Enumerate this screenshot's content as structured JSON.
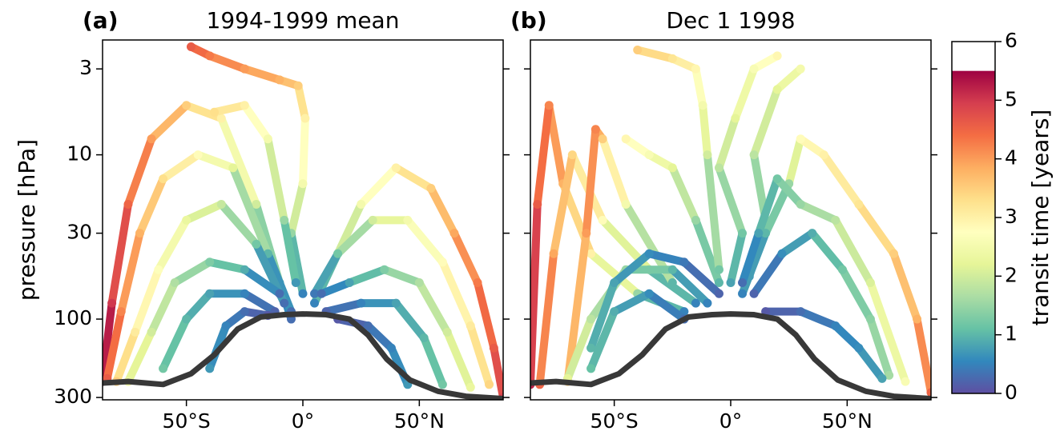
{
  "chart_data": [
    {
      "type": "trajectory",
      "label": "(a)",
      "title": "1994-1999 mean",
      "ylabel": "pressure [hPa]",
      "xlim": [
        -86,
        86
      ],
      "xticks": [
        {
          "value": -50,
          "label": "50°S"
        },
        {
          "value": 0,
          "label": "0°"
        },
        {
          "value": 50,
          "label": "50°N"
        }
      ],
      "ylim": [
        310,
        2
      ],
      "log_y": true,
      "yticks": [
        3,
        10,
        30,
        100,
        300
      ],
      "tropopause": {
        "x": [
          -86,
          -75,
          -60,
          -48,
          -38,
          -28,
          -18,
          -8,
          0,
          10,
          20,
          28,
          36,
          46,
          58,
          70,
          86
        ],
        "y": [
          245,
          240,
          250,
          215,
          165,
          115,
          97,
          94,
          93,
          94,
          100,
          125,
          175,
          235,
          275,
          295,
          305
        ]
      },
      "series": [
        {
          "x": [
            -5,
            -10,
            -20,
            -35,
            -50,
            -65,
            -75,
            -82,
            -86
          ],
          "y": [
            100,
            60,
            20,
            6,
            5,
            8,
            20,
            80,
            240
          ],
          "c": [
            0.3,
            0.8,
            2,
            3,
            3.5,
            4,
            4.5,
            5,
            5.5
          ]
        },
        {
          "x": [
            -5,
            -15,
            -30,
            -45,
            -60,
            -70,
            -78,
            -84
          ],
          "y": [
            90,
            40,
            12,
            10,
            14,
            30,
            90,
            230
          ],
          "c": [
            0.3,
            1,
            2.2,
            2.8,
            3.3,
            3.8,
            4.2,
            4.6
          ]
        },
        {
          "x": [
            -8,
            -20,
            -35,
            -50,
            -62,
            -72,
            -80
          ],
          "y": [
            80,
            35,
            20,
            25,
            50,
            120,
            240
          ],
          "c": [
            0.3,
            1.2,
            1.9,
            2.3,
            2.7,
            3.1,
            3.5
          ]
        },
        {
          "x": [
            -10,
            -25,
            -40,
            -55,
            -65,
            -75
          ],
          "y": [
            70,
            50,
            45,
            60,
            120,
            240
          ],
          "c": [
            0.3,
            0.9,
            1.3,
            1.7,
            2,
            2.4
          ]
        },
        {
          "x": [
            -12,
            -25,
            -40,
            -50,
            -60
          ],
          "y": [
            90,
            70,
            70,
            100,
            200
          ],
          "c": [
            0.2,
            0.5,
            0.8,
            1,
            1.2
          ]
        },
        {
          "x": [
            -15,
            -25,
            -33,
            -40
          ],
          "y": [
            95,
            90,
            110,
            200
          ],
          "c": [
            0.1,
            0.3,
            0.5,
            0.7
          ]
        },
        {
          "x": [
            5,
            15,
            25,
            40,
            55,
            65,
            75,
            82,
            86
          ],
          "y": [
            80,
            40,
            20,
            12,
            16,
            30,
            60,
            150,
            300
          ],
          "c": [
            0.5,
            1.5,
            2.5,
            3,
            3.5,
            3.9,
            4.3,
            4.6,
            4.9
          ]
        },
        {
          "x": [
            5,
            15,
            30,
            45,
            60,
            72,
            80
          ],
          "y": [
            70,
            40,
            25,
            25,
            45,
            110,
            250
          ],
          "c": [
            0.4,
            1.2,
            2,
            2.5,
            2.8,
            3.1,
            3.4
          ]
        },
        {
          "x": [
            8,
            20,
            35,
            50,
            62,
            72
          ],
          "y": [
            70,
            60,
            50,
            60,
            120,
            260
          ],
          "c": [
            0.3,
            0.8,
            1.3,
            1.7,
            2,
            2.3
          ]
        },
        {
          "x": [
            10,
            25,
            40,
            52,
            60
          ],
          "y": [
            90,
            80,
            80,
            130,
            250
          ],
          "c": [
            0.2,
            0.5,
            0.8,
            1,
            1.2
          ]
        },
        {
          "x": [
            15,
            28,
            38,
            45
          ],
          "y": [
            100,
            110,
            150,
            250
          ],
          "c": [
            0.1,
            0.3,
            0.5,
            0.7
          ]
        },
        {
          "x": [
            0,
            -5,
            0,
            1,
            -2,
            -10,
            -25,
            -40,
            -48
          ],
          "y": [
            70,
            30,
            15,
            6,
            3.8,
            3.5,
            3,
            2.5,
            2.2
          ],
          "c": [
            0.5,
            1.5,
            2.5,
            3,
            3.5,
            3.8,
            4,
            4.3,
            4.6
          ]
        },
        {
          "x": [
            -3,
            -8,
            -15,
            -25,
            -38
          ],
          "y": [
            60,
            25,
            8,
            5,
            5.5
          ],
          "c": [
            0.7,
            1.5,
            2.5,
            3,
            3.3
          ]
        }
      ]
    },
    {
      "type": "trajectory",
      "label": "(b)",
      "title": "Dec 1 1998",
      "xlim": [
        -86,
        86
      ],
      "xticks": [
        {
          "value": -50,
          "label": "50°S"
        },
        {
          "value": 0,
          "label": "0°"
        },
        {
          "value": 50,
          "label": "50°N"
        }
      ],
      "ylim": [
        310,
        2
      ],
      "log_y": true,
      "yticks": [
        3,
        10,
        30,
        100,
        300
      ],
      "tropopause": {
        "x": [
          -86,
          -75,
          -60,
          -48,
          -38,
          -28,
          -18,
          -8,
          0,
          10,
          20,
          28,
          36,
          46,
          58,
          70,
          86
        ],
        "y": [
          245,
          240,
          250,
          215,
          165,
          115,
          97,
          94,
          93,
          94,
          100,
          125,
          175,
          235,
          275,
          295,
          305
        ]
      },
      "series": [
        {
          "x": [
            -20,
            -40,
            -60,
            -72,
            -78,
            -83,
            -86
          ],
          "y": [
            90,
            70,
            40,
            15,
            5,
            20,
            250
          ],
          "c": [
            0.5,
            1.5,
            3,
            3.8,
            4.2,
            4.6,
            5.2
          ]
        },
        {
          "x": [
            -15,
            -35,
            -55,
            -68,
            -76,
            -82
          ],
          "y": [
            80,
            50,
            25,
            10,
            40,
            250
          ],
          "c": [
            0.5,
            1.5,
            2.8,
            3.4,
            3.9,
            4.5
          ]
        },
        {
          "x": [
            -25,
            -45,
            -55,
            -58,
            -62,
            -70
          ],
          "y": [
            60,
            20,
            8,
            7,
            30,
            240
          ],
          "c": [
            1,
            2.5,
            3.5,
            4.2,
            4,
            3.5
          ]
        },
        {
          "x": [
            -10,
            -25,
            -45,
            -60,
            -70
          ],
          "y": [
            80,
            50,
            50,
            100,
            230
          ],
          "c": [
            0.5,
            1,
            1.5,
            1.8,
            2.2
          ]
        },
        {
          "x": [
            -20,
            -35,
            -50,
            -60
          ],
          "y": [
            100,
            70,
            90,
            200
          ],
          "c": [
            0.3,
            0.6,
            0.9,
            1.1
          ]
        },
        {
          "x": [
            -5,
            -15,
            -25,
            -35,
            -45
          ],
          "y": [
            60,
            25,
            12,
            10,
            8
          ],
          "c": [
            1,
            1.5,
            2.2,
            2.6,
            2.9
          ]
        },
        {
          "x": [
            -5,
            -10,
            -12,
            -15,
            -25,
            -40
          ],
          "y": [
            50,
            10,
            5,
            3,
            2.6,
            2.3
          ],
          "c": [
            1.2,
            2,
            2.5,
            2.9,
            3.2,
            3.5
          ]
        },
        {
          "x": [
            0,
            5,
            -5,
            2,
            10,
            20
          ],
          "y": [
            60,
            30,
            12,
            6,
            3,
            2.5
          ],
          "c": [
            0.8,
            1.2,
            1.8,
            2.2,
            2.6,
            2.9
          ]
        },
        {
          "x": [
            8,
            15,
            10,
            20,
            30
          ],
          "y": [
            55,
            25,
            10,
            4,
            3
          ],
          "c": [
            0.7,
            1.2,
            1.8,
            2.2,
            2.5
          ]
        },
        {
          "x": [
            5,
            15,
            25,
            30,
            40,
            55,
            70,
            80,
            86
          ],
          "y": [
            70,
            30,
            15,
            8,
            10,
            20,
            40,
            100,
            280
          ],
          "c": [
            0.5,
            1,
            1.5,
            2.8,
            3,
            3.2,
            3.5,
            3.8,
            4.5
          ]
        },
        {
          "x": [
            5,
            12,
            20,
            30,
            45,
            60,
            75
          ],
          "y": [
            60,
            30,
            14,
            20,
            25,
            60,
            240
          ],
          "c": [
            0.3,
            0.8,
            1.2,
            1.5,
            1.8,
            2.1,
            2.6
          ]
        },
        {
          "x": [
            10,
            22,
            35,
            48,
            60,
            68
          ],
          "y": [
            70,
            40,
            30,
            50,
            100,
            220
          ],
          "c": [
            0.2,
            0.6,
            0.9,
            1.2,
            1.4,
            1.6
          ]
        },
        {
          "x": [
            -5,
            -20,
            -35,
            -50,
            -60
          ],
          "y": [
            70,
            45,
            40,
            60,
            150
          ],
          "c": [
            0.2,
            0.4,
            0.6,
            0.8,
            1
          ]
        },
        {
          "x": [
            15,
            30,
            45,
            55,
            65
          ],
          "y": [
            90,
            90,
            110,
            150,
            230
          ],
          "c": [
            0.1,
            0.3,
            0.5,
            0.6,
            0.8
          ]
        }
      ]
    },
    {
      "type": "colorbar",
      "label": "transit time [years]",
      "clim": [
        0,
        6
      ],
      "cmax": 5.5,
      "ticks": [
        0,
        1,
        2,
        3,
        4,
        5,
        6
      ],
      "colormap": [
        "#5e4fa2",
        "#3288bd",
        "#66c2a5",
        "#abdda4",
        "#e6f598",
        "#ffffbf",
        "#fee08b",
        "#fdae61",
        "#f46d43",
        "#d53e4f",
        "#9e0142"
      ]
    }
  ]
}
